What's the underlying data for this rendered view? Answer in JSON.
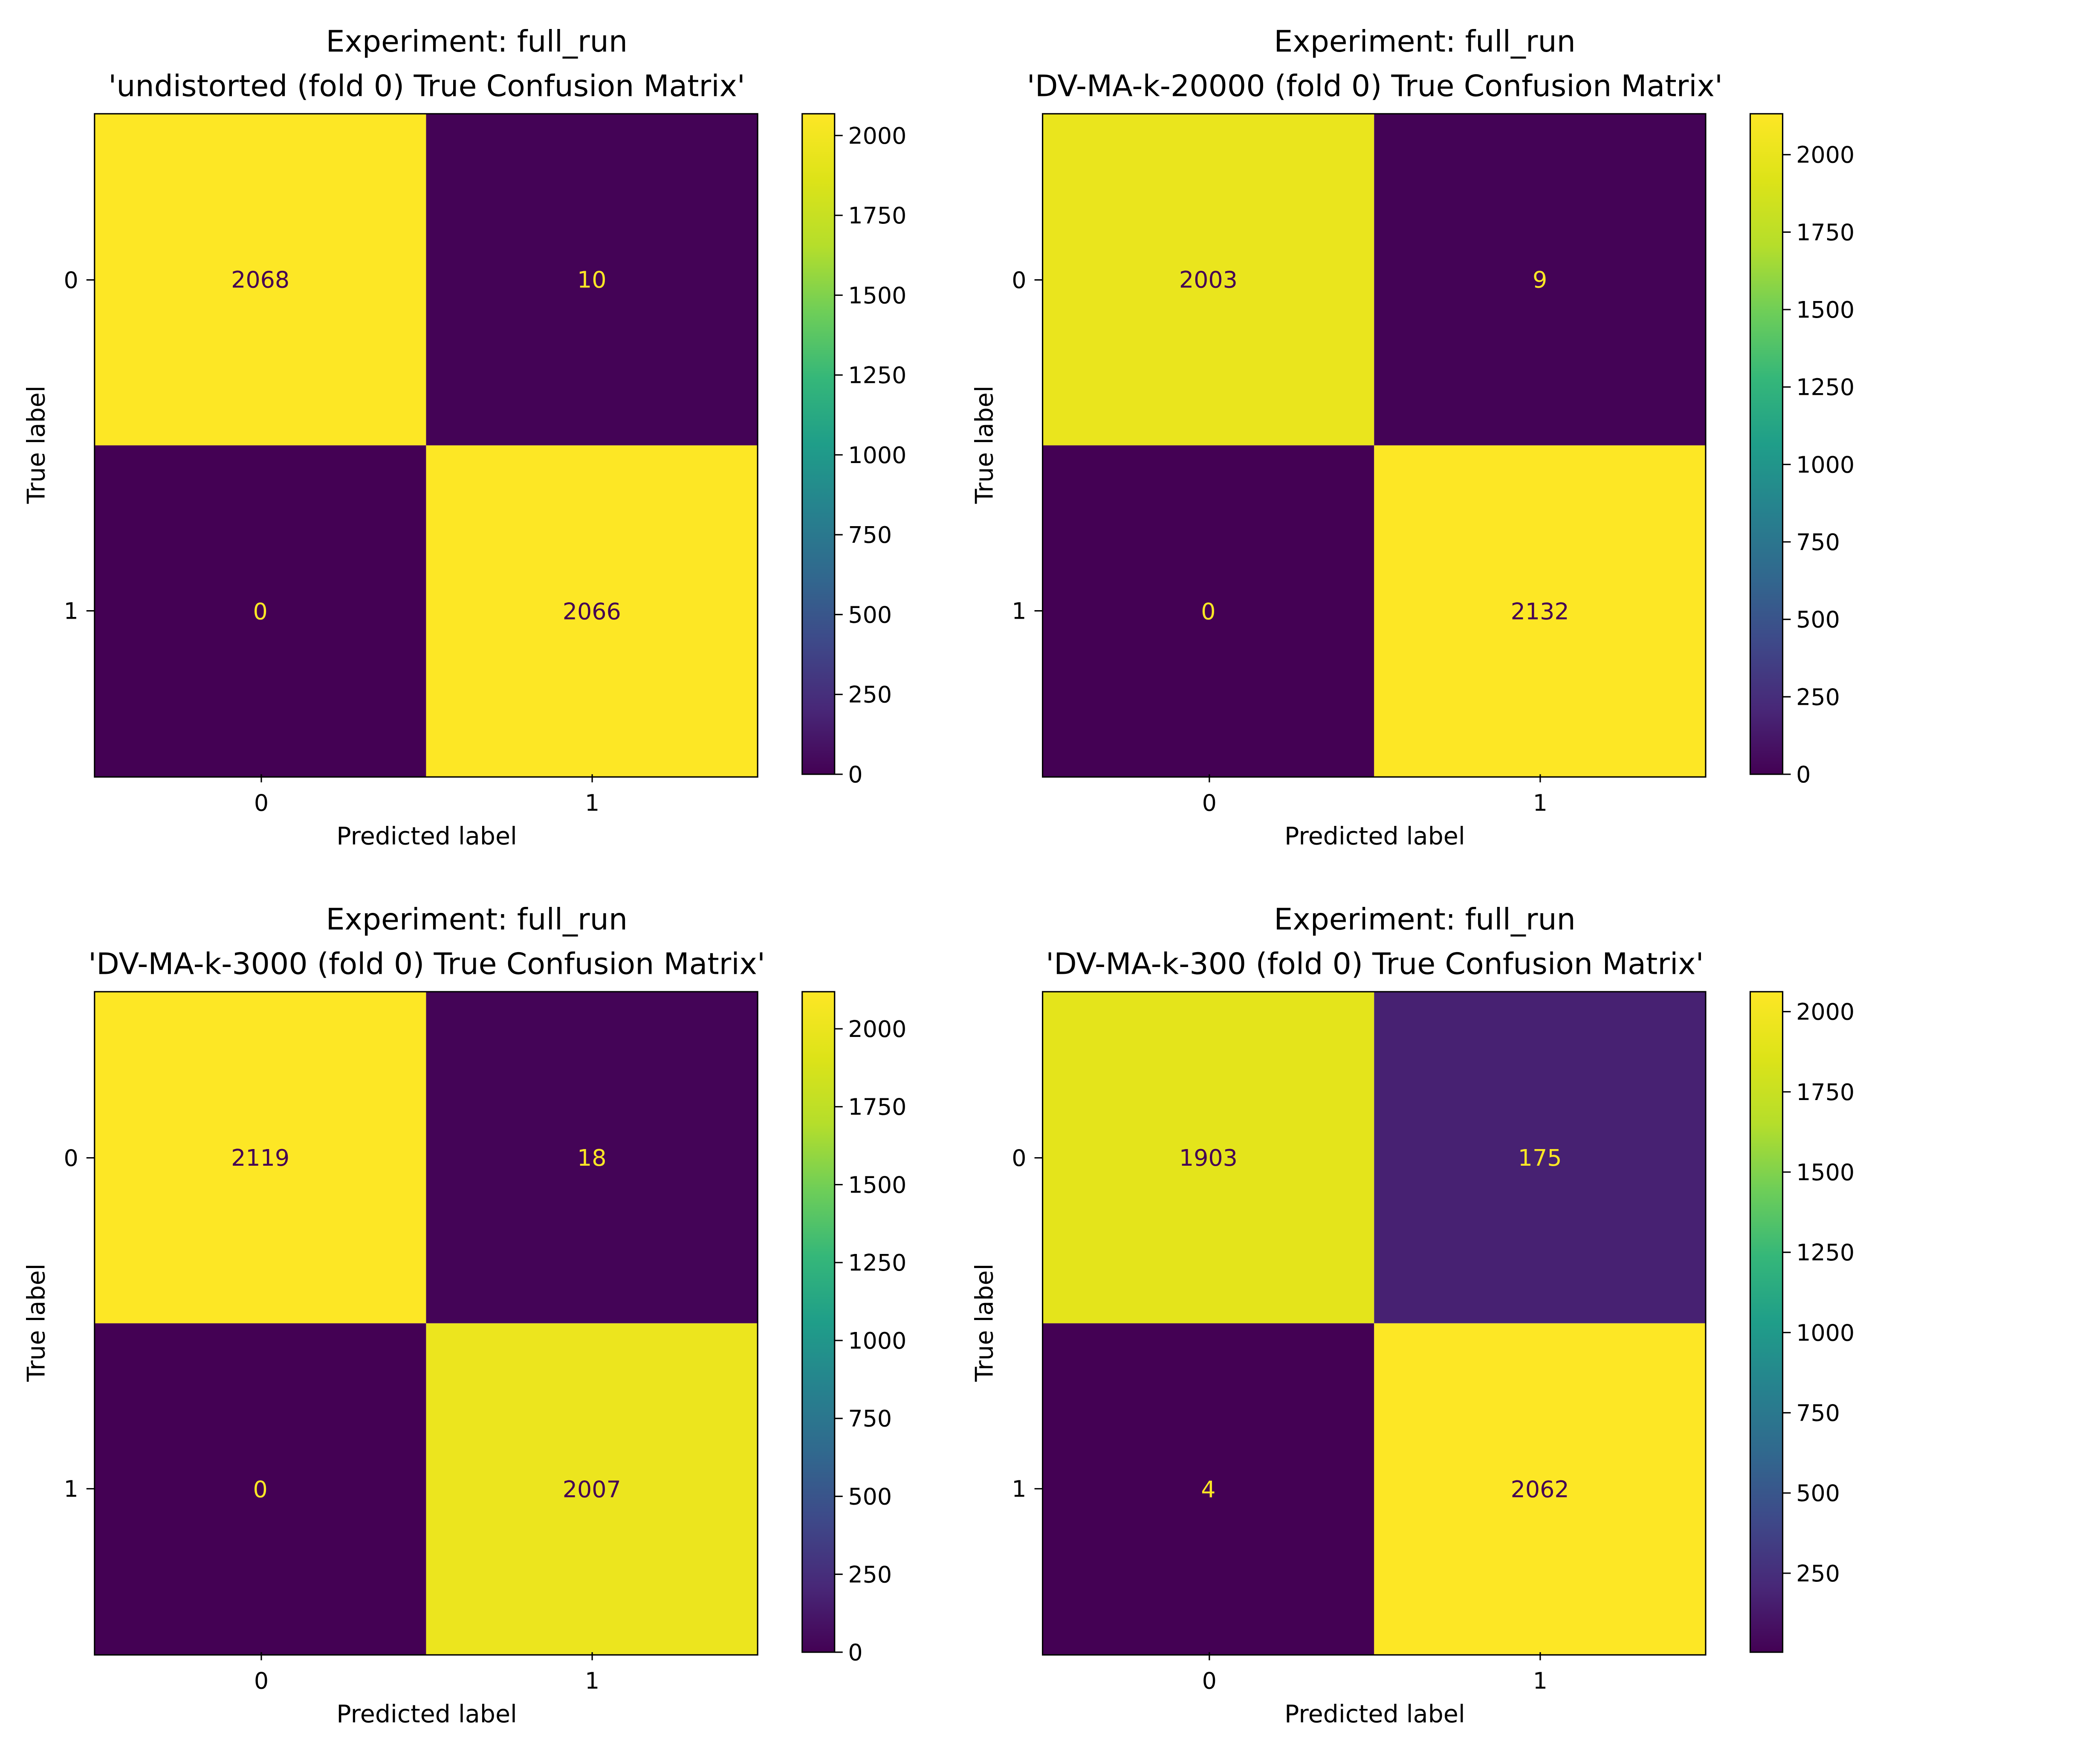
{
  "chart_data": [
    {
      "type": "heatmap",
      "title": "Experiment: full_run",
      "subtitle": "'undistorted (fold 0) True Confusion Matrix'",
      "xlabel": "Predicted label",
      "ylabel": "True label",
      "x_categories": [
        "0",
        "1"
      ],
      "y_categories": [
        "0",
        "1"
      ],
      "values": [
        [
          2068,
          10
        ],
        [
          0,
          2066
        ]
      ],
      "colorbar": {
        "ticks": [
          0,
          250,
          500,
          750,
          1000,
          1250,
          1500,
          1750,
          2000
        ],
        "range": [
          0,
          2068
        ]
      }
    },
    {
      "type": "heatmap",
      "title": "Experiment: full_run",
      "subtitle": "'DV-MA-k-20000 (fold 0) True Confusion Matrix'",
      "xlabel": "Predicted label",
      "ylabel": "True label",
      "x_categories": [
        "0",
        "1"
      ],
      "y_categories": [
        "0",
        "1"
      ],
      "values": [
        [
          2003,
          9
        ],
        [
          0,
          2132
        ]
      ],
      "colorbar": {
        "ticks": [
          0,
          250,
          500,
          750,
          1000,
          1250,
          1500,
          1750,
          2000
        ],
        "range": [
          0,
          2132
        ]
      }
    },
    {
      "type": "heatmap",
      "title": "Experiment: full_run",
      "subtitle": "'DV-MA-k-3000 (fold 0) True Confusion Matrix'",
      "xlabel": "Predicted label",
      "ylabel": "True label",
      "x_categories": [
        "0",
        "1"
      ],
      "y_categories": [
        "0",
        "1"
      ],
      "values": [
        [
          2119,
          18
        ],
        [
          0,
          2007
        ]
      ],
      "colorbar": {
        "ticks": [
          0,
          250,
          500,
          750,
          1000,
          1250,
          1500,
          1750,
          2000
        ],
        "range": [
          0,
          2119
        ]
      }
    },
    {
      "type": "heatmap",
      "title": "Experiment: full_run",
      "subtitle": "'DV-MA-k-300 (fold 0) True Confusion Matrix'",
      "xlabel": "Predicted label",
      "ylabel": "True label",
      "x_categories": [
        "0",
        "1"
      ],
      "y_categories": [
        "0",
        "1"
      ],
      "values": [
        [
          1903,
          175
        ],
        [
          4,
          2062
        ]
      ],
      "colorbar": {
        "ticks": [
          250,
          500,
          750,
          1000,
          1250,
          1500,
          1750,
          2000
        ],
        "range": [
          4,
          2062
        ]
      }
    }
  ],
  "colors": {
    "light_text": "#fde725",
    "dark_text": "#440154"
  }
}
